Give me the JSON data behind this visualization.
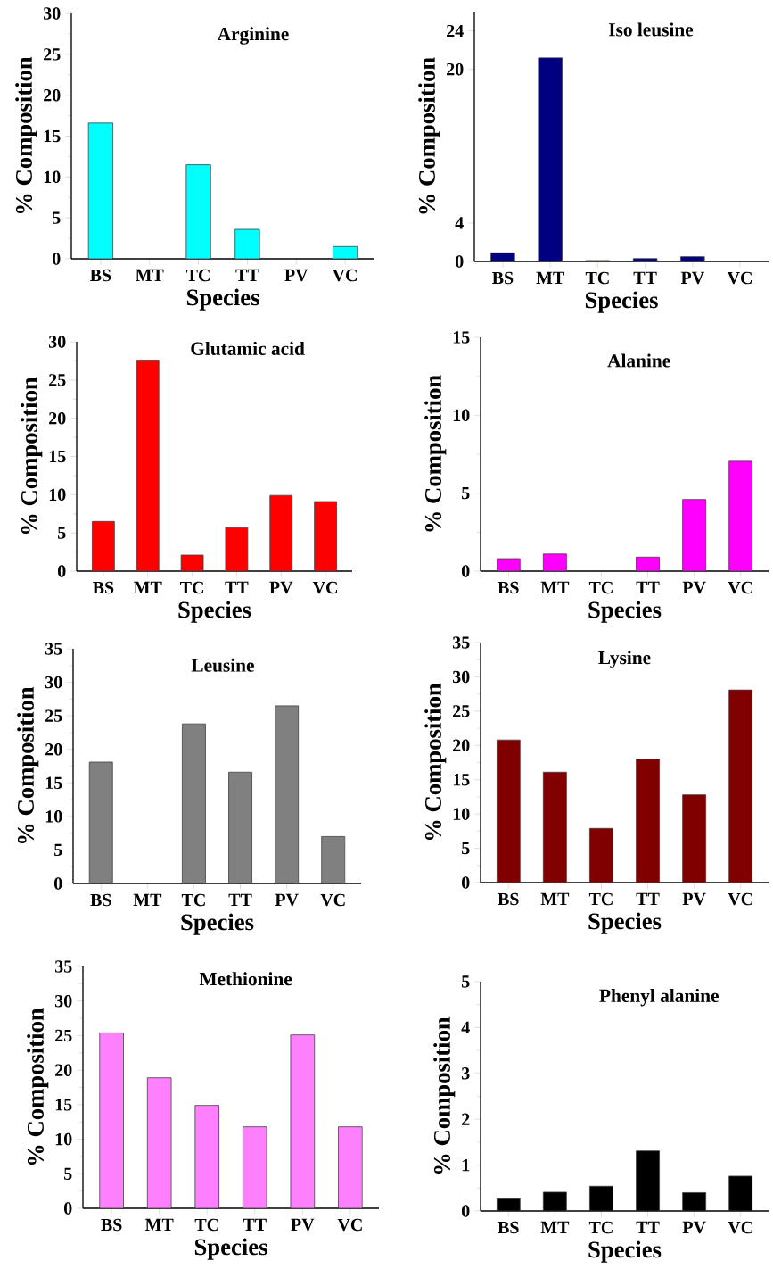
{
  "chart_data": [
    {
      "type": "bar",
      "title": "Arginine",
      "xlabel": "Species",
      "ylabel": "% Composition",
      "categories": [
        "BS",
        "MT",
        "TC",
        "TT",
        "PV",
        "VC"
      ],
      "values": [
        16.6,
        null,
        11.5,
        3.6,
        null,
        1.5
      ],
      "color": "#00ffff",
      "ylim": [
        0,
        30
      ],
      "yticks": [
        0,
        5,
        10,
        15,
        20,
        25,
        30
      ]
    },
    {
      "type": "bar",
      "title": "Iso leusine",
      "xlabel": "Species",
      "ylabel": "% Composition",
      "categories": [
        "BS",
        "MT",
        "TC",
        "TT",
        "PV",
        "VC"
      ],
      "values": [
        0.9,
        21.2,
        0.1,
        0.3,
        0.5,
        null
      ],
      "color": "#000080",
      "ylim": [
        0,
        26
      ],
      "yticks": [
        0,
        4,
        20,
        24
      ]
    },
    {
      "type": "bar",
      "title": "Glutamic acid",
      "xlabel": "Species",
      "ylabel": "% Composition",
      "categories": [
        "BS",
        "MT",
        "TC",
        "TT",
        "PV",
        "VC"
      ],
      "values": [
        6.5,
        27.6,
        2.1,
        5.7,
        9.9,
        9.1
      ],
      "color": "#ff0000",
      "ylim": [
        0,
        30
      ],
      "yticks": [
        0,
        5,
        10,
        15,
        20,
        25,
        30
      ]
    },
    {
      "type": "bar",
      "title": "Alanine",
      "xlabel": "Species",
      "ylabel": "% Composition",
      "categories": [
        "BS",
        "MT",
        "TC",
        "TT",
        "PV",
        "VC"
      ],
      "values": [
        0.8,
        1.1,
        null,
        0.9,
        4.6,
        7.05
      ],
      "color": "#ff00ff",
      "ylim": [
        0,
        15
      ],
      "yticks": [
        0,
        5,
        10,
        15
      ]
    },
    {
      "type": "bar",
      "title": "Leusine",
      "xlabel": "Species",
      "ylabel": "% Composition",
      "categories": [
        "BS",
        "MT",
        "TC",
        "TT",
        "PV",
        "VC"
      ],
      "values": [
        18.1,
        null,
        23.8,
        16.6,
        26.5,
        7.0
      ],
      "color": "#808080",
      "ylim": [
        0,
        35
      ],
      "yticks": [
        0,
        5,
        10,
        15,
        20,
        25,
        30,
        35
      ]
    },
    {
      "type": "bar",
      "title": "Lysine",
      "xlabel": "Species",
      "ylabel": "% Composition",
      "categories": [
        "BS",
        "MT",
        "TC",
        "TT",
        "PV",
        "VC"
      ],
      "values": [
        20.8,
        16.1,
        7.9,
        18.0,
        12.8,
        28.1
      ],
      "color": "#800000",
      "ylim": [
        0,
        35
      ],
      "yticks": [
        0,
        5,
        10,
        15,
        20,
        25,
        30,
        35
      ]
    },
    {
      "type": "bar",
      "title": "Methionine",
      "xlabel": "Species",
      "ylabel": "% Composition",
      "categories": [
        "BS",
        "MT",
        "TC",
        "TT",
        "PV",
        "VC"
      ],
      "values": [
        25.4,
        18.9,
        14.9,
        11.8,
        25.1,
        11.8
      ],
      "color": "#ff80ff",
      "ylim": [
        0,
        35
      ],
      "yticks": [
        0,
        5,
        10,
        15,
        20,
        25,
        30,
        35
      ]
    },
    {
      "type": "bar",
      "title": "Phenyl alanine",
      "xlabel": "Species",
      "ylabel": "% Composition",
      "categories": [
        "BS",
        "MT",
        "TC",
        "TT",
        "PV",
        "VC"
      ],
      "values": [
        0.27,
        0.41,
        0.54,
        1.31,
        0.4,
        0.76
      ],
      "color": "#000000",
      "ylim": [
        0,
        5
      ],
      "yticks": [
        0,
        1,
        2,
        3,
        4,
        5
      ]
    }
  ]
}
